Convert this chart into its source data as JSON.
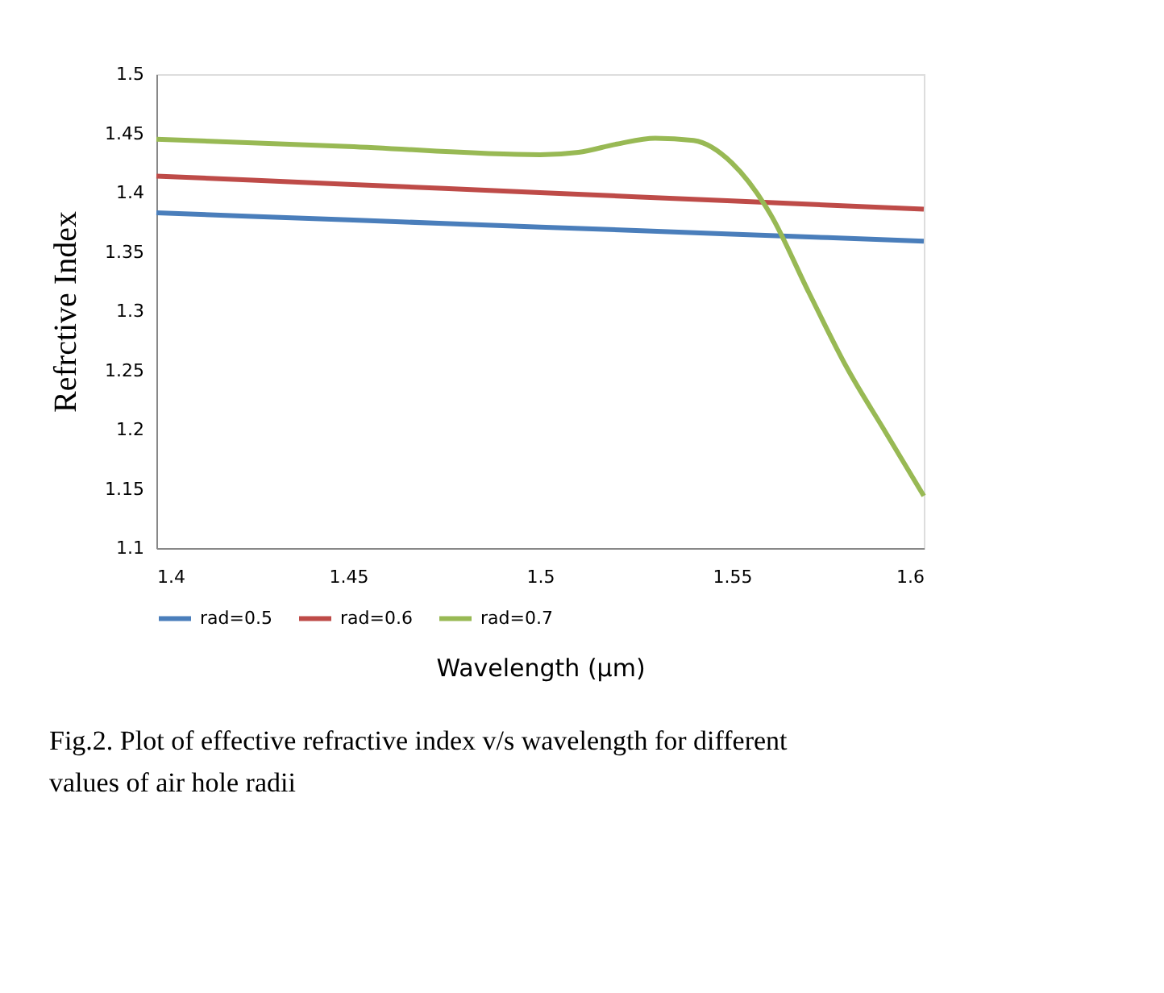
{
  "chart_data": {
    "type": "line",
    "xlabel": "Wavelength (µm)",
    "ylabel": "Refrctive Index",
    "annotations": [
      "Fig.2. Plot of effective refractive index v/s wavelength for different values of air hole radii"
    ],
    "xlim": [
      1.4,
      1.6
    ],
    "xticks": [
      1.4,
      1.45,
      1.5,
      1.55,
      1.6
    ],
    "ylim": [
      1.1,
      1.5
    ],
    "yticks": [
      1.1,
      1.15,
      1.2,
      1.25,
      1.3,
      1.35,
      1.4,
      1.45,
      1.5
    ],
    "grid": false,
    "legend": "bottom",
    "line_style": "solid",
    "marker": "none",
    "series": [
      {
        "name": "rad=0.5",
        "color": "#4a7ebb",
        "x": [
          1.4,
          1.45,
          1.5,
          1.55,
          1.6
        ],
        "values": [
          1.383,
          1.377,
          1.371,
          1.365,
          1.359
        ]
      },
      {
        "name": "rad=0.6",
        "color": "#be4b48",
        "x": [
          1.4,
          1.45,
          1.5,
          1.55,
          1.6
        ],
        "values": [
          1.414,
          1.407,
          1.4,
          1.393,
          1.386
        ]
      },
      {
        "name": "rad=0.7",
        "color": "#98b954",
        "x": [
          1.4,
          1.45,
          1.5,
          1.51,
          1.52,
          1.53,
          1.54,
          1.55,
          1.56,
          1.57,
          1.58,
          1.59,
          1.6
        ],
        "values": [
          1.445,
          1.439,
          1.432,
          1.434,
          1.441,
          1.446,
          1.444,
          1.425,
          1.382,
          1.316,
          1.252,
          1.198,
          1.144
        ]
      }
    ]
  }
}
